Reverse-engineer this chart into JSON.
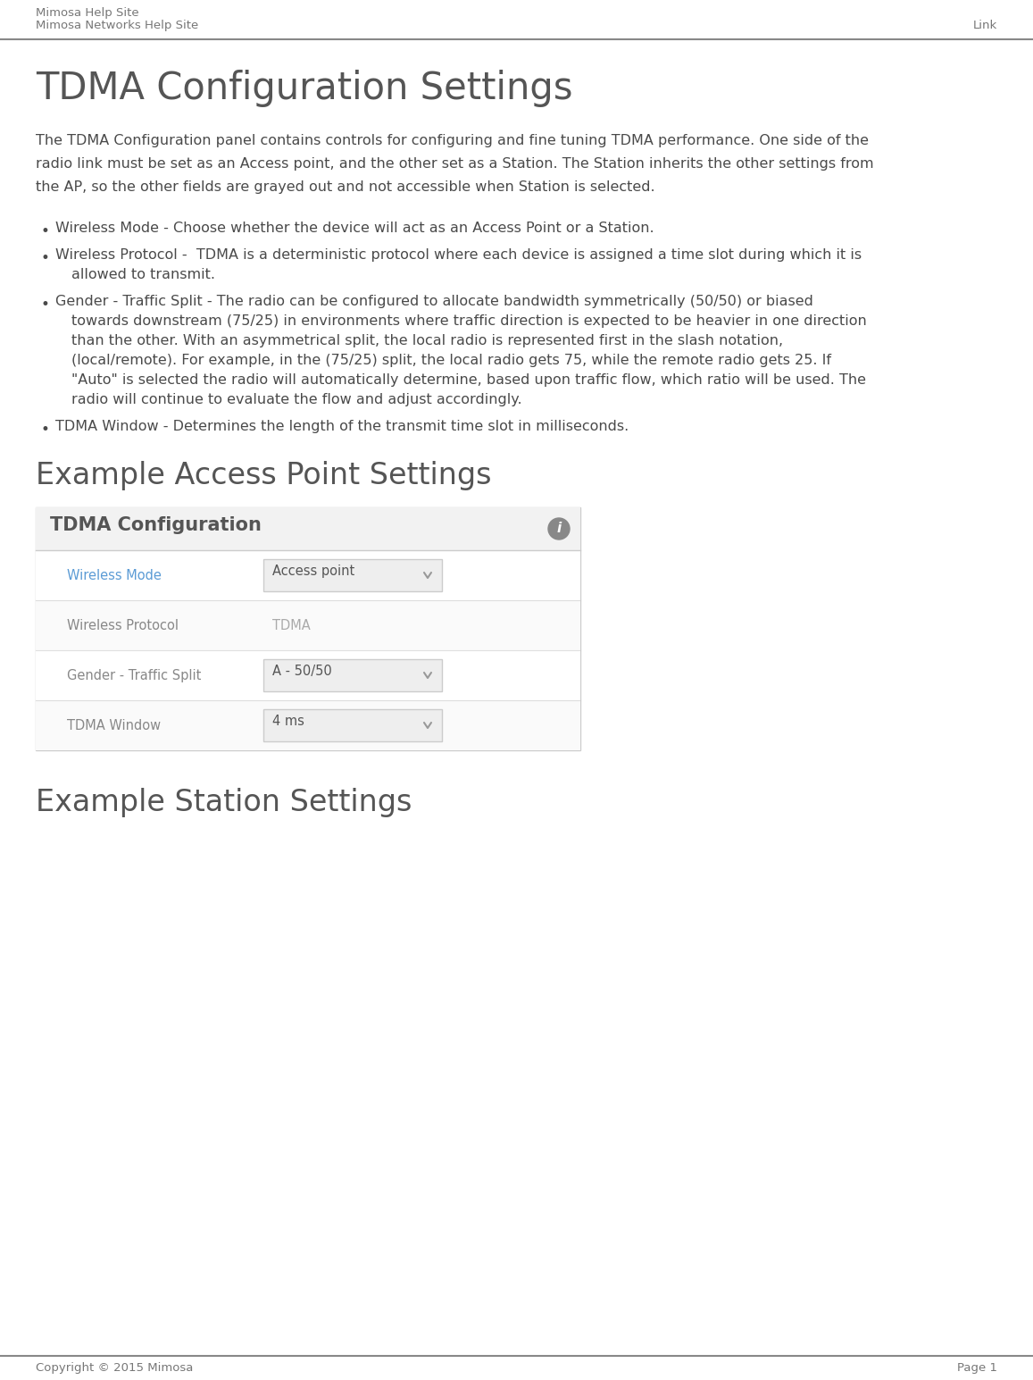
{
  "header_line1": "Mimosa Help Site",
  "header_line2": "Mimosa Networks Help Site",
  "header_right": "Link",
  "footer_left": "Copyright © 2015 Mimosa",
  "footer_right": "Page 1",
  "main_title": "TDMA Configuration Settings",
  "intro_lines": [
    "The TDMA Configuration panel contains controls for configuring and fine tuning TDMA performance. One side of the",
    "radio link must be set as an Access point, and the other set as a Station. The Station inherits the other settings from",
    "the AP, so the other fields are grayed out and not accessible when Station is selected."
  ],
  "bullets": [
    {
      "lines": [
        "Wireless Mode - Choose whether the device will act as an Access Point or a Station."
      ]
    },
    {
      "lines": [
        "Wireless Protocol -  TDMA is a deterministic protocol where each device is assigned a time slot during which it is",
        "allowed to transmit."
      ]
    },
    {
      "lines": [
        "Gender - Traffic Split - The radio can be configured to allocate bandwidth symmetrically (50/50) or biased",
        "towards downstream (75/25) in environments where traffic direction is expected to be heavier in one direction",
        "than the other. With an asymmetrical split, the local radio is represented first in the slash notation,",
        "(local/remote). For example, in the (75/25) split, the local radio gets 75, while the remote radio gets 25. If",
        "\"Auto\" is selected the radio will automatically determine, based upon traffic flow, which ratio will be used. The",
        "radio will continue to evaluate the flow and adjust accordingly."
      ]
    },
    {
      "lines": [
        "TDMA Window - Determines the length of the transmit time slot in milliseconds."
      ]
    }
  ],
  "section1_title": "Example Access Point Settings",
  "section2_title": "Example Station Settings",
  "panel_title": "TDMA Configuration",
  "panel_rows": [
    {
      "label": "Wireless Mode",
      "value": "Access point",
      "has_dropdown": true,
      "label_color": "#5b9bd5",
      "value_color": "#555555"
    },
    {
      "label": "Wireless Protocol",
      "value": "TDMA",
      "has_dropdown": false,
      "label_color": "#888888",
      "value_color": "#aaaaaa"
    },
    {
      "label": "Gender - Traffic Split",
      "value": "A - 50/50",
      "has_dropdown": true,
      "label_color": "#888888",
      "value_color": "#555555"
    },
    {
      "label": "TDMA Window",
      "value": "4 ms",
      "has_dropdown": true,
      "label_color": "#888888",
      "value_color": "#555555"
    }
  ],
  "bg_color": "#ffffff",
  "text_color": "#4a4a4a",
  "header_color": "#777777",
  "title_color": "#555555",
  "panel_border_color": "#cccccc",
  "panel_header_bg": "#f2f2f2",
  "panel_header_text": "#555555",
  "panel_row_bg1": "#ffffff",
  "panel_row_bg2": "#fafafa",
  "dropdown_bg": "#eeeeee",
  "dropdown_border": "#cccccc",
  "dropdown_arrow_color": "#999999",
  "section_title_color": "#555555",
  "header_divider_color": "#888888",
  "footer_divider_color": "#888888"
}
